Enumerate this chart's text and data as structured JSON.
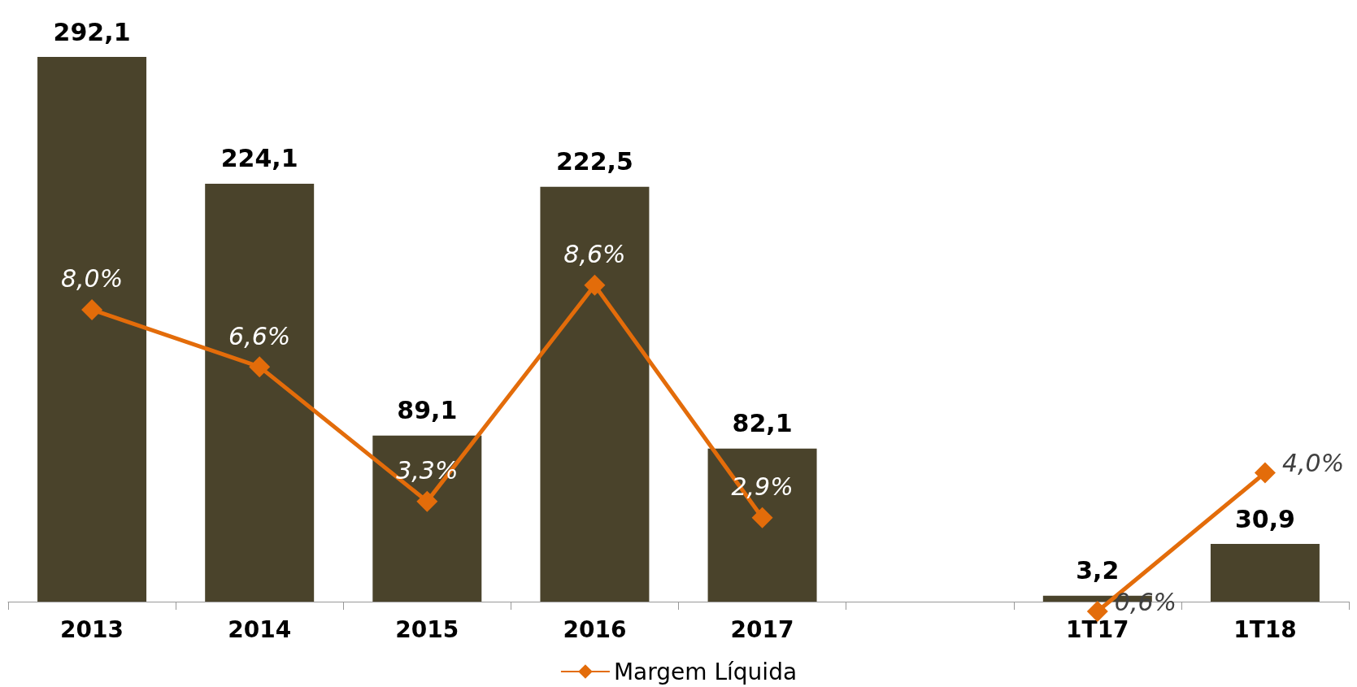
{
  "chart_data": {
    "type": "bar",
    "categories": [
      "2013",
      "2014",
      "2015",
      "2016",
      "2017",
      null,
      "1T17",
      "1T18"
    ],
    "series": [
      {
        "color": "#4a432b",
        "values": [
          292.1,
          224.1,
          89.1,
          222.5,
          82.1,
          null,
          3.2,
          30.9
        ],
        "value_labels": [
          "292,1",
          "224,1",
          "89,1",
          "222,5",
          "82,1",
          null,
          "3,2",
          "30,9"
        ]
      },
      {
        "type": "line",
        "name": "Margem Líquida",
        "axis": "y2",
        "color": "#e36c0a",
        "values": [
          8.0,
          6.6,
          3.3,
          8.6,
          2.9,
          null,
          0.6,
          4.0
        ],
        "value_labels": [
          "8,0%",
          "6,6%",
          "3,3%",
          "8,6%",
          "2,9%",
          null,
          "0,6%",
          "4,0%"
        ]
      }
    ],
    "marker": "diamond",
    "legend": "bottom"
  }
}
